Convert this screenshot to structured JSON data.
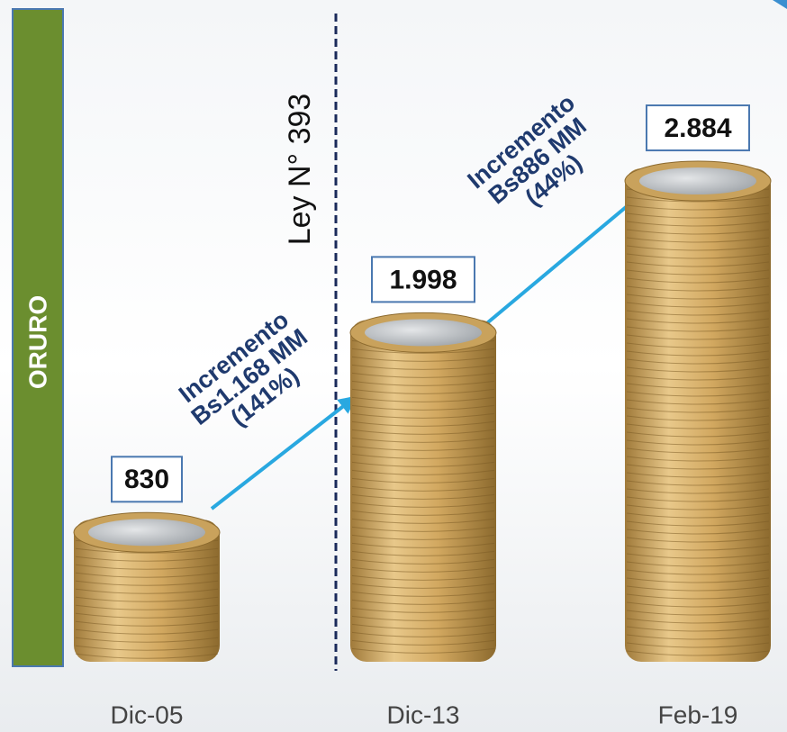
{
  "chart_data": {
    "type": "bar",
    "side_label": "ORURO",
    "marker_label": "Ley N° 393",
    "categories": [
      "Dic-05",
      "Dic-13",
      "Feb-19"
    ],
    "values": [
      830,
      1998,
      2884
    ],
    "value_labels": [
      "830",
      "1.998",
      "2.884"
    ],
    "annotations": [
      [
        "Incremento",
        "Bs1.168 MM",
        "(141%)"
      ],
      [
        "Incremento",
        "Bs886 MM",
        "(44%)"
      ]
    ]
  }
}
